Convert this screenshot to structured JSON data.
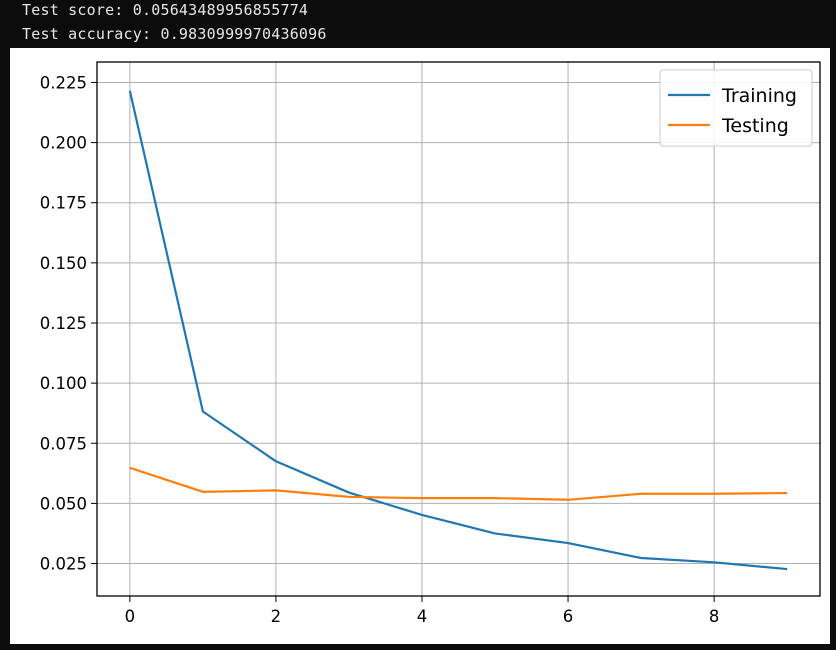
{
  "console": {
    "line1": "Test score: 0.05643489956855774",
    "line2": "Test accuracy: 0.9830999970436096"
  },
  "chart_data": {
    "type": "line",
    "title": "",
    "xlabel": "",
    "ylabel": "",
    "x": [
      0,
      1,
      2,
      3,
      4,
      5,
      6,
      7,
      8,
      9
    ],
    "series": [
      {
        "name": "Training",
        "color": "#1f77b4",
        "values": [
          0.2215,
          0.0882,
          0.0675,
          0.0545,
          0.0452,
          0.0375,
          0.0335,
          0.0273,
          0.0255,
          0.0227
        ]
      },
      {
        "name": "Testing",
        "color": "#ff7f0e",
        "values": [
          0.0648,
          0.0548,
          0.0554,
          0.0527,
          0.0522,
          0.0522,
          0.0515,
          0.054,
          0.054,
          0.0543
        ]
      }
    ],
    "xlim": [
      -0.45,
      9.45
    ],
    "ylim": [
      0.0115,
      0.2335
    ],
    "xticks": [
      0,
      2,
      4,
      6,
      8
    ],
    "xtick_labels": [
      "0",
      "2",
      "4",
      "6",
      "8"
    ],
    "yticks": [
      0.025,
      0.05,
      0.075,
      0.1,
      0.125,
      0.15,
      0.175,
      0.2,
      0.225
    ],
    "ytick_labels": [
      "0.025",
      "0.050",
      "0.075",
      "0.100",
      "0.125",
      "0.150",
      "0.175",
      "0.200",
      "0.225"
    ],
    "grid": true,
    "legend": "top-right"
  }
}
